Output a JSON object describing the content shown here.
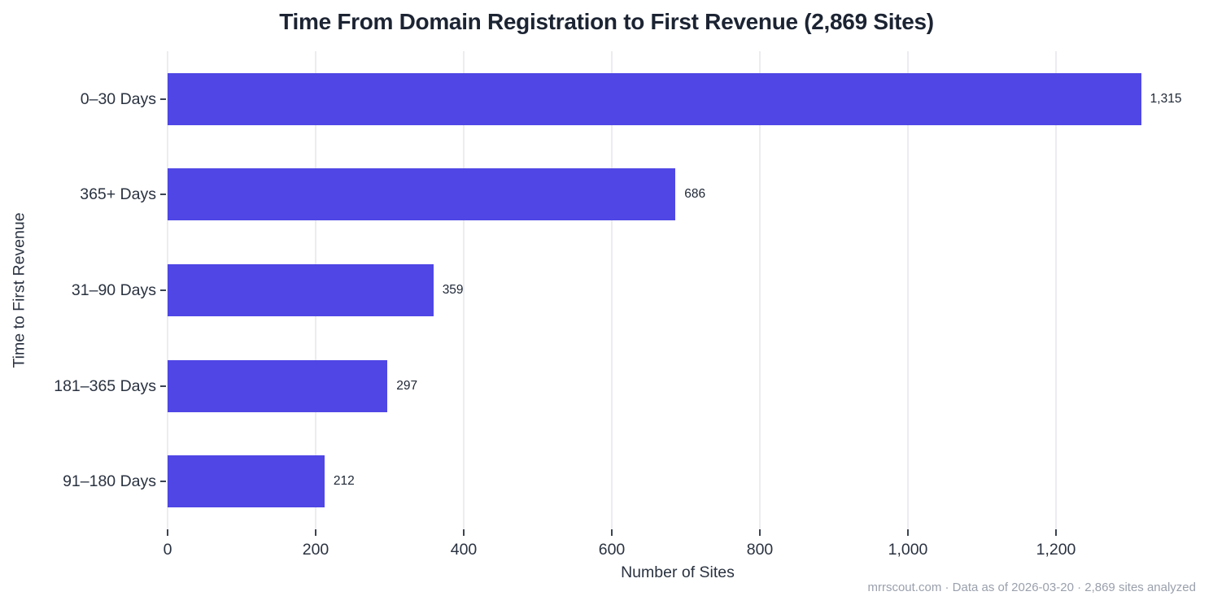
{
  "chart_data": {
    "type": "bar",
    "orientation": "horizontal",
    "title": "Time From Domain Registration to First Revenue (2,869 Sites)",
    "categories": [
      "0–30 Days",
      "365+ Days",
      "31–90 Days",
      "181–365 Days",
      "91–180 Days"
    ],
    "values": [
      1315,
      686,
      359,
      297,
      212
    ],
    "value_labels": [
      "1,315",
      "686",
      "359",
      "297",
      "212"
    ],
    "xlabel": "Number of Sites",
    "ylabel": "Time to First Revenue",
    "x_tick_values": [
      0,
      200,
      400,
      600,
      800,
      1000,
      1200
    ],
    "x_tick_labels": [
      "0",
      "200",
      "400",
      "600",
      "800",
      "1,000",
      "1,200"
    ],
    "xlim": [
      0,
      1378
    ],
    "grid": true,
    "legend": "none",
    "colors": {
      "bar": "#4F46E5",
      "grid": "#ECECF1",
      "title_text": "#1C2433",
      "axis_text": "#2A3240",
      "value_text": "#1E2735",
      "tick_mark": "#3A4454",
      "footer_text": "#9AA0AC"
    }
  },
  "footer": {
    "text": "mrrscout.com · Data as of 2026-03-20 · 2,869 sites analyzed"
  }
}
